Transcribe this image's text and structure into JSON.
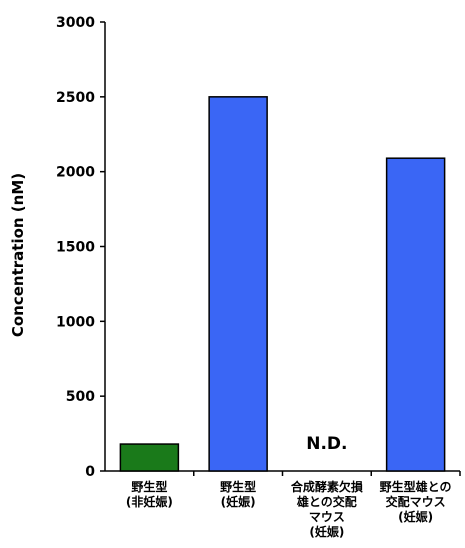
{
  "chart_data": {
    "type": "bar",
    "categories": [
      "野生型\n(非妊娠)",
      "野生型\n(妊娠)",
      "合成酵素欠損\n雄との交配\nマウス\n(妊娠)",
      "野生型雄との\n交配マウス\n(妊娠)"
    ],
    "values": [
      180,
      2500,
      0,
      2090
    ],
    "bar_colors": [
      "#1a7a1a",
      "#3a66f5",
      "#3a66f5",
      "#3a66f5"
    ],
    "annotations": [
      "",
      "",
      "N.D.",
      ""
    ],
    "ylabel": "Concentration (nM)",
    "xlabel": "",
    "ylim": [
      0,
      3000
    ],
    "yticks": [
      "0",
      "500",
      "1000",
      "1500",
      "2000",
      "2500",
      "3000"
    ],
    "grid": false
  }
}
